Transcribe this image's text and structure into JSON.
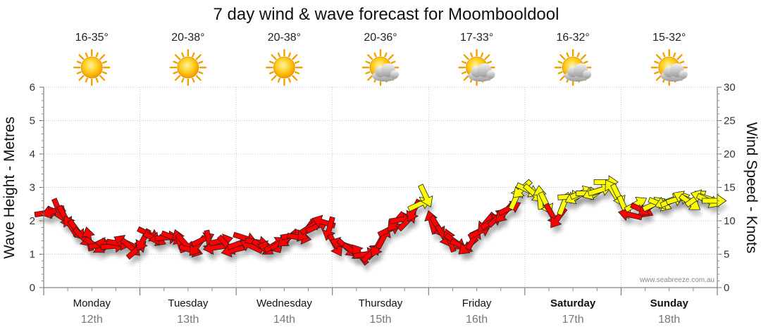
{
  "chart_data": {
    "type": "line",
    "title": "7 day wind & wave forecast for Moombooldool",
    "ylabel": "Wave Height - Metres",
    "y2label": "Wind Speed - Knots",
    "ylim": [
      0,
      6
    ],
    "y2lim": [
      0,
      30
    ],
    "y_ticks": [
      "0",
      "1",
      "2",
      "3",
      "4",
      "5",
      "6"
    ],
    "y2_ticks": [
      "0",
      "5",
      "10",
      "15",
      "20",
      "25",
      "30"
    ],
    "grid": true,
    "days": [
      {
        "name": "Monday",
        "date": "12th",
        "temp": "16-35°",
        "icon": "sun-icon",
        "bold": false
      },
      {
        "name": "Tuesday",
        "date": "13th",
        "temp": "20-38°",
        "icon": "sun-icon",
        "bold": false
      },
      {
        "name": "Wednesday",
        "date": "14th",
        "temp": "20-38°",
        "icon": "sun-icon",
        "bold": false
      },
      {
        "name": "Thursday",
        "date": "15th",
        "temp": "20-36°",
        "icon": "partly-cloudy-icon",
        "bold": false
      },
      {
        "name": "Friday",
        "date": "16th",
        "temp": "17-33°",
        "icon": "partly-cloudy-icon",
        "bold": false
      },
      {
        "name": "Saturday",
        "date": "17th",
        "temp": "16-32°",
        "icon": "partly-cloudy-icon",
        "bold": true
      },
      {
        "name": "Sunday",
        "date": "18th",
        "temp": "15-32°",
        "icon": "partly-cloudy-icon",
        "bold": true
      }
    ],
    "wind_series": {
      "name": "Wind speed (knots) with direction arrows",
      "samples_per_day": 16,
      "speed_knots": [
        11.2,
        11.4,
        11.6,
        10.6,
        9.2,
        8.6,
        7.5,
        7.3,
        6.3,
        6.4,
        6.5,
        6.2,
        6.6,
        6.8,
        6.0,
        5.7,
        7.1,
        8.0,
        7.3,
        7.4,
        7.5,
        7.5,
        7.0,
        6.6,
        5.6,
        6.2,
        7.2,
        6.8,
        6.0,
        7.0,
        6.3,
        5.6,
        6.6,
        7.4,
        6.2,
        6.8,
        6.0,
        6.0,
        6.5,
        6.8,
        7.3,
        7.8,
        7.5,
        8.4,
        9.2,
        9.2,
        9.8,
        8.8,
        6.3,
        6.5,
        5.9,
        5.4,
        5.0,
        5.0,
        5.2,
        6.2,
        7.5,
        8.7,
        9.8,
        10.2,
        10.0,
        11.5,
        12.5,
        13.7,
        9.8,
        9.1,
        7.7,
        7.1,
        6.8,
        6.2,
        6.2,
        7.3,
        8.4,
        9.7,
        9.9,
        10.5,
        11.1,
        11.9,
        13.4,
        14.7,
        14.6,
        14.1,
        13.5,
        12.6,
        10.9,
        10.4,
        12.6,
        13.6,
        13.6,
        14.2,
        14.1,
        14.2,
        14.6,
        15.8,
        14.6,
        13.8,
        12.0,
        10.9,
        12.5,
        11.6,
        11.9,
        12.5,
        12.5,
        12.8,
        13.0,
        13.3,
        13.4,
        12.7,
        13.4,
        13.6,
        13.0,
        13.0
      ],
      "colors": {
        "light": "#ff0000",
        "moderate": "#ffff00"
      }
    }
  },
  "credit": "www.seabreeze.com.au"
}
